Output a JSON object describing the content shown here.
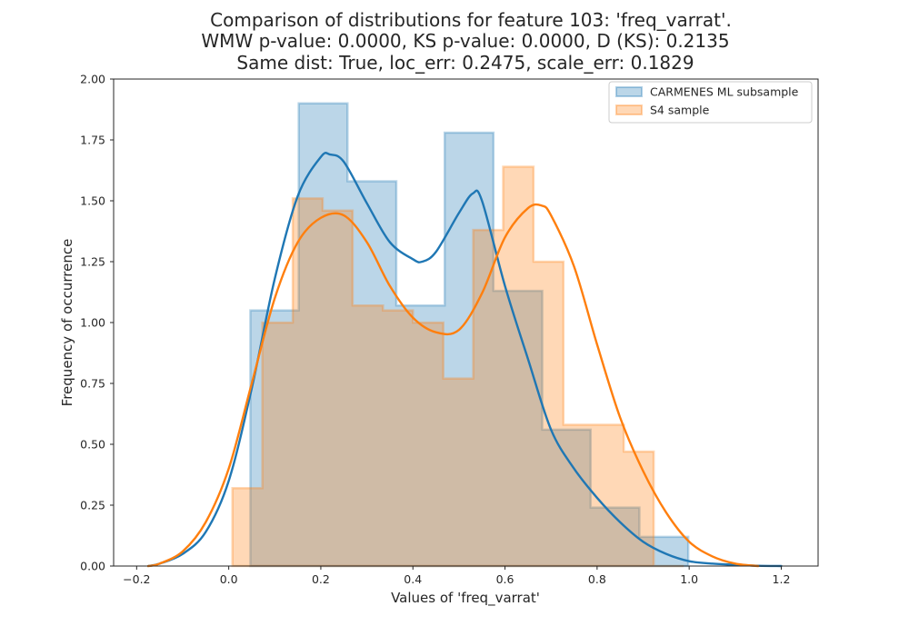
{
  "chart_data": {
    "type": "histogram",
    "title_lines": [
      "Comparison of distributions for feature 103: 'freq_varrat'.",
      "WMW p-value: 0.0000, KS p-value: 0.0000, D (KS): 0.2135",
      "Same dist: True, loc_err: 0.2475, scale_err: 0.1829"
    ],
    "xlabel": "Values of 'freq_varrat'",
    "ylabel": "Frequency of occurrence",
    "xlim": [
      -0.25,
      1.28
    ],
    "ylim": [
      0,
      2.0
    ],
    "xticks": [
      -0.2,
      0.0,
      0.2,
      0.4,
      0.6,
      0.8,
      1.0,
      1.2
    ],
    "xtick_labels": [
      "−0.2",
      "0.0",
      "0.2",
      "0.4",
      "0.6",
      "0.8",
      "1.0",
      "1.2"
    ],
    "yticks": [
      0,
      0.25,
      0.5,
      0.75,
      1.0,
      1.25,
      1.5,
      1.75,
      2.0
    ],
    "ytick_labels": [
      "0.00",
      "0.25",
      "0.50",
      "0.75",
      "1.00",
      "1.25",
      "1.50",
      "1.75",
      "2.00"
    ],
    "grid": false,
    "legend_position": "upper right",
    "series": [
      {
        "name": "CARMENES ML subsample",
        "color": "#1f77b4",
        "bin_edges": [
          0.047,
          0.152,
          0.258,
          0.364,
          0.469,
          0.575,
          0.681,
          0.786,
          0.892,
          0.998
        ],
        "values": [
          1.05,
          1.9,
          1.58,
          1.07,
          1.78,
          1.13,
          0.56,
          0.24,
          0.12
        ],
        "kde_x": [
          -0.175,
          -0.15,
          -0.1,
          -0.05,
          0.0,
          0.05,
          0.1,
          0.15,
          0.2,
          0.22,
          0.25,
          0.3,
          0.35,
          0.4,
          0.42,
          0.45,
          0.5,
          0.53,
          0.55,
          0.6,
          0.65,
          0.7,
          0.75,
          0.8,
          0.85,
          0.9,
          0.95,
          1.0,
          1.05,
          1.1,
          1.15,
          1.2
        ],
        "kde_y": [
          0.0,
          0.01,
          0.05,
          0.14,
          0.35,
          0.73,
          1.18,
          1.52,
          1.68,
          1.69,
          1.66,
          1.49,
          1.33,
          1.26,
          1.25,
          1.29,
          1.45,
          1.53,
          1.5,
          1.15,
          0.85,
          0.56,
          0.4,
          0.28,
          0.18,
          0.1,
          0.05,
          0.02,
          0.01,
          0.005,
          0.001,
          0.0
        ]
      },
      {
        "name": "S4 sample",
        "color": "#ff7f0e",
        "bin_edges": [
          0.008,
          0.073,
          0.139,
          0.204,
          0.269,
          0.335,
          0.4,
          0.466,
          0.531,
          0.596,
          0.662,
          0.727,
          0.792,
          0.858,
          0.923,
          0.988
        ],
        "values": [
          0.32,
          1.0,
          1.51,
          1.46,
          1.07,
          1.05,
          1.0,
          0.77,
          1.38,
          1.64,
          1.25,
          0.58,
          0.58,
          0.47,
          0.0
        ],
        "kde_x": [
          -0.175,
          -0.15,
          -0.1,
          -0.05,
          0.0,
          0.05,
          0.1,
          0.15,
          0.2,
          0.25,
          0.3,
          0.35,
          0.4,
          0.45,
          0.5,
          0.55,
          0.6,
          0.65,
          0.68,
          0.7,
          0.75,
          0.8,
          0.85,
          0.9,
          0.95,
          1.0,
          1.05,
          1.1,
          1.15
        ],
        "kde_y": [
          0.0,
          0.01,
          0.06,
          0.18,
          0.4,
          0.75,
          1.1,
          1.33,
          1.43,
          1.44,
          1.33,
          1.15,
          1.02,
          0.96,
          0.97,
          1.12,
          1.35,
          1.47,
          1.48,
          1.44,
          1.23,
          0.91,
          0.61,
          0.39,
          0.22,
          0.1,
          0.04,
          0.01,
          0.0
        ]
      }
    ]
  }
}
